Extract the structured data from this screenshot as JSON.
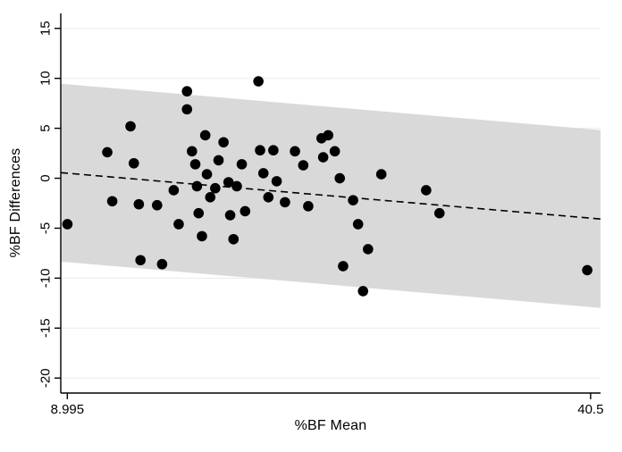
{
  "chart_data": {
    "type": "scatter",
    "title": "",
    "xlabel": "%BF Mean",
    "ylabel": "%BF Differences",
    "xlim": [
      8.6,
      41.1
    ],
    "ylim": [
      -21.5,
      16.5
    ],
    "grid": "horizontal",
    "legend_position": "none",
    "x_ticks": [
      {
        "value": 8.995,
        "label": "8.995"
      },
      {
        "value": 40.5,
        "label": "40.5"
      }
    ],
    "y_ticks": [
      {
        "value": 15,
        "label": "15"
      },
      {
        "value": 10,
        "label": "10"
      },
      {
        "value": 5,
        "label": "5"
      },
      {
        "value": 0,
        "label": "0"
      },
      {
        "value": -5,
        "label": "-5"
      },
      {
        "value": -10,
        "label": "-10"
      },
      {
        "value": -15,
        "label": "-15"
      },
      {
        "value": -20,
        "label": "-20"
      }
    ],
    "points": [
      [
        9.0,
        -4.6
      ],
      [
        11.4,
        2.6
      ],
      [
        11.7,
        -2.3
      ],
      [
        12.8,
        5.2
      ],
      [
        13.0,
        1.5
      ],
      [
        13.3,
        -2.6
      ],
      [
        13.4,
        -8.2
      ],
      [
        14.4,
        -2.7
      ],
      [
        14.7,
        -8.6
      ],
      [
        15.4,
        -1.2
      ],
      [
        15.7,
        -4.6
      ],
      [
        16.2,
        8.7
      ],
      [
        16.2,
        6.9
      ],
      [
        16.5,
        2.7
      ],
      [
        16.7,
        1.4
      ],
      [
        16.8,
        -0.8
      ],
      [
        16.9,
        -3.5
      ],
      [
        17.1,
        -5.8
      ],
      [
        17.3,
        4.3
      ],
      [
        17.4,
        0.4
      ],
      [
        17.6,
        -1.9
      ],
      [
        17.9,
        -1.0
      ],
      [
        18.1,
        1.8
      ],
      [
        18.4,
        3.6
      ],
      [
        18.7,
        -0.4
      ],
      [
        18.8,
        -3.7
      ],
      [
        19.0,
        -6.1
      ],
      [
        19.2,
        -0.8
      ],
      [
        19.5,
        1.4
      ],
      [
        19.7,
        -3.3
      ],
      [
        20.5,
        9.7
      ],
      [
        20.6,
        2.8
      ],
      [
        20.8,
        0.5
      ],
      [
        21.1,
        -1.9
      ],
      [
        21.4,
        2.8
      ],
      [
        21.6,
        -0.3
      ],
      [
        22.1,
        -2.4
      ],
      [
        22.7,
        2.7
      ],
      [
        23.2,
        1.3
      ],
      [
        23.5,
        -2.8
      ],
      [
        24.3,
        4.0
      ],
      [
        24.4,
        2.1
      ],
      [
        24.7,
        4.3
      ],
      [
        25.1,
        2.7
      ],
      [
        25.4,
        0.0
      ],
      [
        25.6,
        -8.8
      ],
      [
        26.2,
        -2.2
      ],
      [
        26.5,
        -4.6
      ],
      [
        26.8,
        -11.3
      ],
      [
        27.1,
        -7.1
      ],
      [
        27.9,
        0.4
      ],
      [
        30.6,
        -1.2
      ],
      [
        31.4,
        -3.5
      ],
      [
        40.3,
        -9.2
      ]
    ],
    "trend_line": {
      "style": "dashed",
      "x": [
        8.6,
        41.1
      ],
      "y": [
        0.56,
        -4.08
      ]
    },
    "agreement_band": {
      "x": [
        8.6,
        41.1
      ],
      "upper": [
        9.46,
        4.82
      ],
      "lower": [
        -8.34,
        -12.98
      ]
    },
    "marker": {
      "shape": "circle",
      "radius_px": 5.8
    },
    "colors": {
      "point": "#000000",
      "band": "#d9d9d9",
      "gridline": "#eaebeb",
      "axis": "#000000",
      "trend": "#000000",
      "background": "#ffffff"
    }
  }
}
